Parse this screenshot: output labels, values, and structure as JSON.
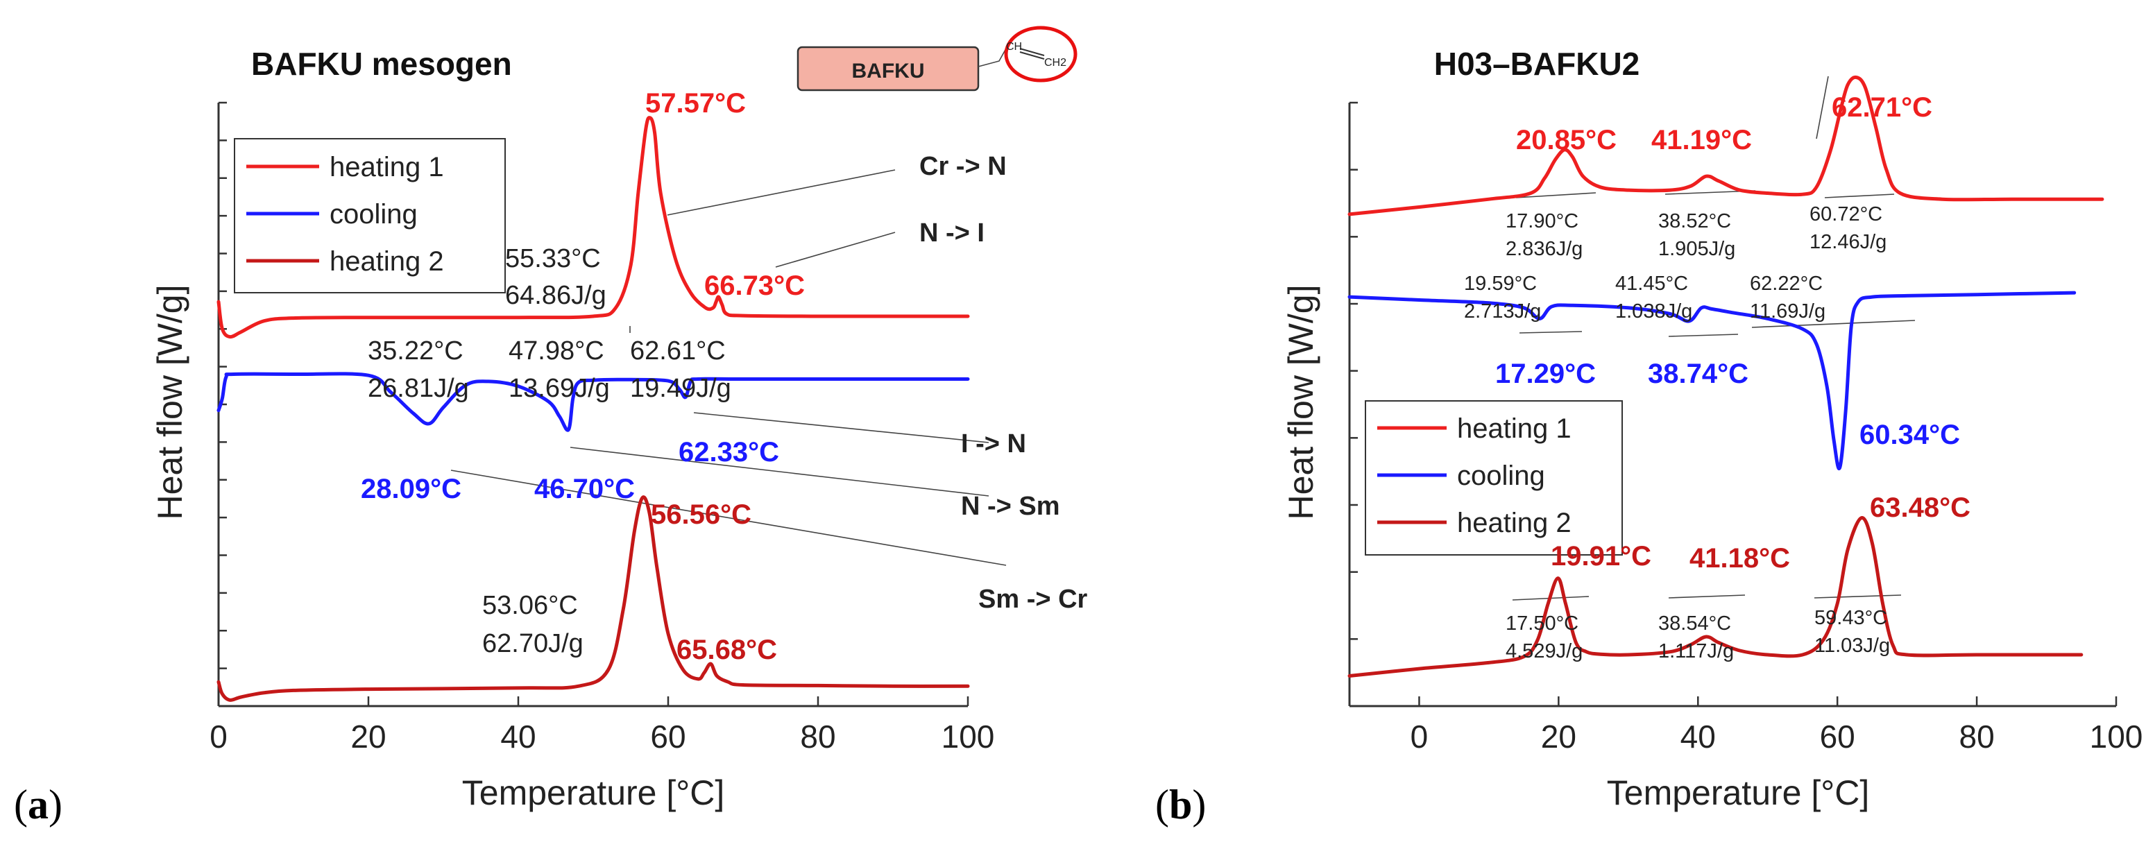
{
  "colors": {
    "heating1": "#ee1f1f",
    "cooling": "#1a1aff",
    "heating2": "#c41818",
    "text_red": "#ee1f1f",
    "text_blue": "#1a1aff"
  },
  "panel_labels": {
    "a": [
      "(",
      "a",
      ")"
    ],
    "b": [
      "(",
      "b",
      ")"
    ]
  },
  "chart_data": [
    {
      "type": "line",
      "title": "BAFKU mesogen",
      "xlabel": "Temperature [°C]",
      "ylabel": "Heat flow [W/g]",
      "xlim": [
        0,
        100
      ],
      "ylim": [
        0,
        10
      ],
      "xticks": [
        0,
        20,
        40,
        60,
        80,
        100
      ],
      "legend": {
        "position": "top-left",
        "entries": [
          "heating 1",
          "cooling",
          "heating 2"
        ]
      },
      "molecule_label": "BAFKU",
      "vinyl_labels": [
        "CH",
        "CH2"
      ],
      "series": [
        {
          "name": "heating 1",
          "color_key": "heating1",
          "x": [
            0,
            0.5,
            1.5,
            3,
            6,
            10,
            20,
            40,
            50,
            53,
            55,
            56,
            57,
            57.57,
            58.2,
            59,
            61,
            63,
            65,
            66,
            66.4,
            66.73,
            67.2,
            67.8,
            70,
            80,
            90,
            100
          ],
          "y": [
            6.7,
            6.25,
            6.12,
            6.2,
            6.38,
            6.43,
            6.44,
            6.44,
            6.46,
            6.6,
            7.3,
            8.5,
            9.55,
            9.75,
            9.5,
            8.5,
            7.4,
            6.85,
            6.6,
            6.6,
            6.7,
            6.78,
            6.65,
            6.5,
            6.47,
            6.46,
            6.46,
            6.46
          ]
        },
        {
          "name": "cooling",
          "color_key": "cooling",
          "x": [
            0,
            0.5,
            1,
            2,
            10,
            20,
            23,
            26,
            28.09,
            30,
            33,
            36,
            40,
            44,
            45.5,
            46.7,
            47.3,
            48,
            50,
            55,
            60,
            61.5,
            62.33,
            63,
            64,
            70,
            80,
            90,
            100
          ],
          "y": [
            4.9,
            5.1,
            5.45,
            5.5,
            5.5,
            5.48,
            5.2,
            4.85,
            4.68,
            4.95,
            5.32,
            5.38,
            5.3,
            5.05,
            4.8,
            4.58,
            5.1,
            5.36,
            5.4,
            5.41,
            5.39,
            5.25,
            5.12,
            5.38,
            5.42,
            5.42,
            5.42,
            5.42,
            5.42
          ]
        },
        {
          "name": "heating 2",
          "color_key": "heating2",
          "x": [
            0,
            0.5,
            1.5,
            3,
            6,
            10,
            20,
            40,
            48,
            52,
            54,
            55.5,
            56.56,
            57.5,
            58.5,
            60,
            62,
            64,
            64.8,
            65.68,
            66.5,
            68,
            70,
            80,
            90,
            100
          ],
          "y": [
            0.4,
            0.2,
            0.1,
            0.15,
            0.22,
            0.26,
            0.28,
            0.3,
            0.33,
            0.6,
            1.6,
            2.9,
            3.45,
            3.2,
            2.3,
            1.2,
            0.6,
            0.45,
            0.55,
            0.7,
            0.5,
            0.4,
            0.35,
            0.34,
            0.33,
            0.33
          ]
        }
      ],
      "peak_labels": [
        {
          "text": "57.57°C",
          "color_key": "text_red"
        },
        {
          "text": "66.73°C",
          "color_key": "text_red"
        },
        {
          "text": "62.33°C",
          "color_key": "text_blue"
        },
        {
          "text": "28.09°C",
          "color_key": "text_blue"
        },
        {
          "text": "46.70°C",
          "color_key": "text_blue"
        },
        {
          "text": "56.56°C",
          "color_key": "heating2"
        },
        {
          "text": "65.68°C",
          "color_key": "heating2"
        }
      ],
      "annotations": [
        {
          "lines": [
            "55.33°C",
            "64.86J/g"
          ]
        },
        {
          "lines": [
            "35.22°C",
            "26.81J/g"
          ]
        },
        {
          "lines": [
            "47.98°C",
            "13.69J/g"
          ]
        },
        {
          "lines": [
            "62.61°C",
            "19.49J/g"
          ]
        },
        {
          "lines": [
            "53.06°C",
            "62.70J/g"
          ]
        }
      ],
      "transitions": [
        "Cr -> N",
        "N -> I",
        "I -> N",
        "N -> Sm",
        "Sm -> Cr"
      ]
    },
    {
      "type": "line",
      "title": "H03–BAFKU2",
      "xlabel": "Temperature [°C]",
      "ylabel": "Heat flow [W/g]",
      "xlim": [
        -10,
        100
      ],
      "ylim": [
        0,
        10
      ],
      "xticks": [
        0,
        20,
        40,
        60,
        80,
        100
      ],
      "legend": {
        "position": "bottom-left",
        "entries": [
          "heating 1",
          "cooling",
          "heating 2"
        ]
      },
      "series": [
        {
          "name": "heating 1",
          "color_key": "heating1",
          "x": [
            -10,
            0,
            10,
            16,
            18,
            19.5,
            20.85,
            22,
            23.5,
            26,
            30,
            36,
            39,
            41.19,
            43,
            46,
            50,
            55,
            57,
            59,
            60.5,
            61.5,
            62.71,
            64,
            65.5,
            67,
            69,
            75,
            85,
            98
          ],
          "y": [
            8.15,
            8.27,
            8.4,
            8.5,
            8.75,
            9.05,
            9.22,
            9.1,
            8.78,
            8.6,
            8.55,
            8.55,
            8.62,
            8.78,
            8.7,
            8.55,
            8.5,
            8.48,
            8.6,
            9.2,
            9.9,
            10.3,
            10.42,
            10.25,
            9.6,
            8.9,
            8.5,
            8.4,
            8.4,
            8.4
          ]
        },
        {
          "name": "cooling",
          "color_key": "cooling",
          "x": [
            -10,
            0,
            10,
            15,
            17.29,
            19,
            22,
            30,
            36,
            38.74,
            40.5,
            42,
            45,
            50,
            55,
            57,
            58.5,
            59.5,
            60.34,
            61.2,
            62,
            63,
            65,
            70,
            80,
            94
          ],
          "y": [
            6.78,
            6.73,
            6.68,
            6.6,
            6.42,
            6.62,
            6.64,
            6.6,
            6.5,
            6.38,
            6.6,
            6.58,
            6.52,
            6.42,
            6.25,
            6.0,
            5.3,
            4.4,
            3.95,
            4.9,
            6.3,
            6.7,
            6.78,
            6.8,
            6.82,
            6.85
          ]
        },
        {
          "name": "heating 2",
          "color_key": "heating2",
          "x": [
            -10,
            0,
            10,
            15,
            17,
            18.5,
            19.91,
            21,
            22.5,
            24,
            26,
            30,
            36,
            39,
            41.18,
            43,
            46,
            50,
            55,
            58,
            60,
            61.5,
            63.48,
            65,
            66.5,
            68,
            70,
            80,
            95
          ],
          "y": [
            0.5,
            0.62,
            0.72,
            0.82,
            1.1,
            1.7,
            2.12,
            1.7,
            1.05,
            0.9,
            0.86,
            0.85,
            0.9,
            1.02,
            1.15,
            1.05,
            0.92,
            0.85,
            0.85,
            1.1,
            1.7,
            2.6,
            3.12,
            2.7,
            1.7,
            1.0,
            0.85,
            0.85,
            0.85
          ]
        }
      ],
      "peak_labels": [
        {
          "text": "20.85°C",
          "color_key": "text_red"
        },
        {
          "text": "41.19°C",
          "color_key": "text_red"
        },
        {
          "text": "62.71°C",
          "color_key": "text_red"
        },
        {
          "text": "17.29°C",
          "color_key": "text_blue"
        },
        {
          "text": "38.74°C",
          "color_key": "text_blue"
        },
        {
          "text": "60.34°C",
          "color_key": "text_blue"
        },
        {
          "text": "19.91°C",
          "color_key": "heating2"
        },
        {
          "text": "41.18°C",
          "color_key": "heating2"
        },
        {
          "text": "63.48°C",
          "color_key": "heating2"
        }
      ],
      "annotations": [
        {
          "lines": [
            "17.90°C",
            "2.836J/g"
          ]
        },
        {
          "lines": [
            "38.52°C",
            "1.905J/g"
          ]
        },
        {
          "lines": [
            "60.72°C",
            "12.46J/g"
          ]
        },
        {
          "lines": [
            "19.59°C",
            "2.713J/g"
          ]
        },
        {
          "lines": [
            "41.45°C",
            "1.038J/g"
          ]
        },
        {
          "lines": [
            "62.22°C",
            "11.69J/g"
          ]
        },
        {
          "lines": [
            "17.50°C",
            "4.529J/g"
          ]
        },
        {
          "lines": [
            "38.54°C",
            "1.117J/g"
          ]
        },
        {
          "lines": [
            "59.43°C",
            "11.03J/g"
          ]
        }
      ]
    }
  ]
}
